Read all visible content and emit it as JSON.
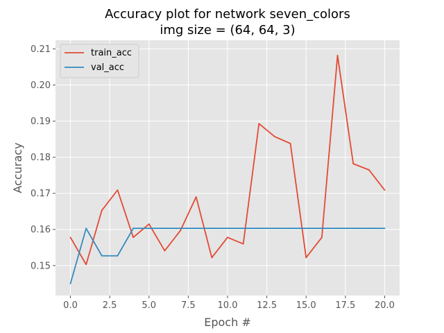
{
  "chart_data": {
    "type": "line",
    "title": "Accuracy plot for network seven_colors",
    "subtitle": "img size = (64, 64, 3)",
    "xlabel": "Epoch #",
    "ylabel": "Accuracy",
    "xlim": [
      -0.95,
      20.95
    ],
    "ylim": [
      0.1417,
      0.2124
    ],
    "x_ticks": [
      0.0,
      2.5,
      5.0,
      7.5,
      10.0,
      12.5,
      15.0,
      17.5,
      20.0
    ],
    "x_tick_labels": [
      "0.0",
      "2.5",
      "5.0",
      "7.5",
      "10.0",
      "12.5",
      "15.0",
      "17.5",
      "20.0"
    ],
    "y_ticks": [
      0.15,
      0.16,
      0.17,
      0.18,
      0.19,
      0.2,
      0.21
    ],
    "y_tick_labels": [
      "0.15",
      "0.16",
      "0.17",
      "0.18",
      "0.19",
      "0.20",
      "0.21"
    ],
    "grid": true,
    "legend_position": "top-left",
    "x": [
      0,
      1,
      2,
      3,
      4,
      5,
      6,
      7,
      8,
      9,
      10,
      11,
      12,
      13,
      14,
      15,
      16,
      17,
      18,
      19,
      20
    ],
    "series": [
      {
        "name": "train_acc",
        "color": "#E24A33",
        "values": [
          0.1578,
          0.1503,
          0.1653,
          0.1709,
          0.1578,
          0.1615,
          0.1541,
          0.1597,
          0.169,
          0.1522,
          0.1578,
          0.156,
          0.1893,
          0.1857,
          0.1838,
          0.1522,
          0.1578,
          0.2082,
          0.1782,
          0.1765,
          0.1709
        ]
      },
      {
        "name": "val_acc",
        "color": "#348ABD",
        "values": [
          0.145,
          0.1603,
          0.1527,
          0.1527,
          0.1603,
          0.1603,
          0.1603,
          0.1603,
          0.1603,
          0.1603,
          0.1603,
          0.1603,
          0.1603,
          0.1603,
          0.1603,
          0.1603,
          0.1603,
          0.1603,
          0.1603,
          0.1603,
          0.1603
        ]
      }
    ],
    "plot_background": "#E5E5E5",
    "grid_color": "#FFFFFF"
  }
}
